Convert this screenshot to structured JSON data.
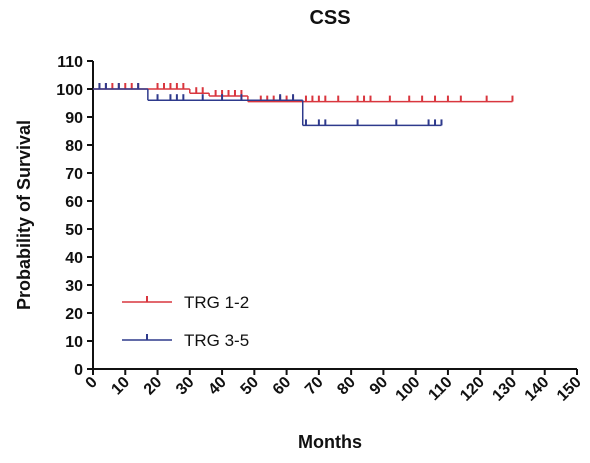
{
  "chart_data": {
    "type": "km",
    "title": "CSS",
    "x_label": "Months",
    "y_label": "Probability of Survival",
    "xlim": [
      0,
      150
    ],
    "xticks": [
      0,
      10,
      20,
      30,
      40,
      50,
      60,
      70,
      80,
      90,
      100,
      110,
      120,
      130,
      140,
      150
    ],
    "ylim": [
      0,
      110
    ],
    "yticks": [
      0,
      10,
      20,
      30,
      40,
      50,
      60,
      70,
      80,
      90,
      100,
      110
    ],
    "legend": "lower left",
    "series": [
      {
        "name": "TRG 1-2",
        "color": "#d9363e",
        "x": [
          0,
          30,
          36,
          48,
          130
        ],
        "values": [
          100,
          98.5,
          97.5,
          95.5,
          95.5
        ],
        "censor_x": [
          2,
          4,
          6,
          8,
          10,
          12,
          14,
          20,
          22,
          24,
          26,
          28,
          32,
          34,
          38,
          40,
          42,
          44,
          46,
          52,
          54,
          56,
          58,
          60,
          62,
          66,
          68,
          70,
          72,
          76,
          82,
          84,
          86,
          92,
          98,
          102,
          106,
          110,
          114,
          122,
          130
        ],
        "censor_values": [
          100,
          100,
          100,
          100,
          100,
          100,
          100,
          100,
          100,
          100,
          100,
          100,
          98.5,
          98.5,
          97.5,
          97.5,
          97.5,
          97.5,
          97.5,
          95.5,
          95.5,
          95.5,
          95.5,
          95.5,
          95.5,
          95.5,
          95.5,
          95.5,
          95.5,
          95.5,
          95.5,
          95.5,
          95.5,
          95.5,
          95.5,
          95.5,
          95.5,
          95.5,
          95.5,
          95.5,
          95.5
        ]
      },
      {
        "name": "TRG 3-5",
        "color": "#2e3a8c",
        "x": [
          0,
          17,
          65,
          108
        ],
        "values": [
          100,
          96,
          87,
          87
        ],
        "censor_x": [
          2,
          4,
          8,
          14,
          20,
          24,
          26,
          28,
          34,
          40,
          46,
          58,
          62,
          66,
          70,
          72,
          82,
          94,
          104,
          106,
          108
        ],
        "censor_values": [
          100,
          100,
          100,
          100,
          96,
          96,
          96,
          96,
          96,
          96,
          96,
          96,
          96,
          87,
          87,
          87,
          87,
          87,
          87,
          87,
          87
        ]
      }
    ]
  }
}
